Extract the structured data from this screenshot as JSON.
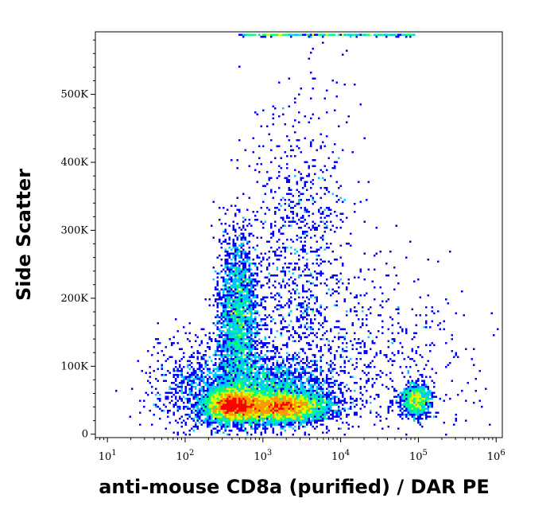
{
  "chart_data": {
    "type": "scatter",
    "subtype": "flow-cytometry-density-dot-plot",
    "title": "",
    "xlabel": "anti-mouse CD8a (purified) / DAR PE",
    "ylabel": "Side Scatter",
    "x_scale": "log",
    "xlim": [
      7,
      1200000
    ],
    "ylim": [
      -5000,
      592000
    ],
    "x_ticks": [
      {
        "value": 10,
        "base": "10",
        "exp": "1"
      },
      {
        "value": 100,
        "base": "10",
        "exp": "2"
      },
      {
        "value": 1000,
        "base": "10",
        "exp": "3"
      },
      {
        "value": 10000,
        "base": "10",
        "exp": "4"
      },
      {
        "value": 100000,
        "base": "10",
        "exp": "5"
      },
      {
        "value": 1000000,
        "base": "10",
        "exp": "6"
      }
    ],
    "y_ticks": [
      {
        "value": 0,
        "label": "0"
      },
      {
        "value": 100000,
        "label": "100K"
      },
      {
        "value": 200000,
        "label": "200K"
      },
      {
        "value": 300000,
        "label": "300K"
      },
      {
        "value": 400000,
        "label": "400K"
      },
      {
        "value": 500000,
        "label": "500K"
      }
    ],
    "grid": false,
    "legend": "none",
    "colormap": [
      "#0000ff",
      "#00c8ff",
      "#00ff7f",
      "#d4ff00",
      "#ff9900",
      "#ff0000"
    ],
    "populations": [
      {
        "name_hint": "CD8-negative low-SSC",
        "x_center": 450,
        "y_center": 42000,
        "density": "peak"
      },
      {
        "name_hint": "low-SSC band",
        "x_center": 1800,
        "y_center": 40000,
        "density": "peak"
      },
      {
        "name_hint": "granular cells",
        "x_center": 500,
        "y_center": 180000,
        "density": "high"
      },
      {
        "name_hint": "CD8-positive",
        "x_center": 95000,
        "y_center": 50000,
        "density": "medium"
      },
      {
        "name_hint": "scattered high-SSC",
        "x_center": 2500,
        "y_center": 330000,
        "density": "low"
      }
    ]
  }
}
